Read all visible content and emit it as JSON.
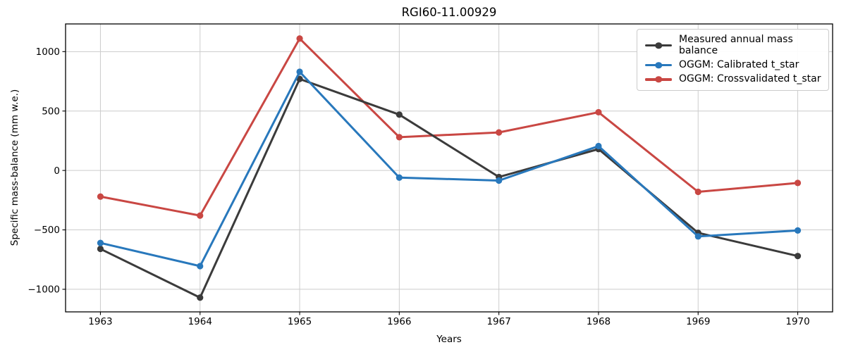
{
  "title": "RGI60-11.00929",
  "colors": {
    "measured": "#3b3b3b",
    "calibrated": "#2878bc",
    "crossvalidated": "#c94743",
    "grid": "#cccccc",
    "spine": "#000000",
    "tick": "#000000",
    "background": "#ffffff",
    "legend_border": "#cbcbcb"
  },
  "chart_data": {
    "type": "line",
    "title": "RGI60-11.00929",
    "xlabel": "Years",
    "ylabel": "Specific mass-balance (mm w.e.)",
    "x": [
      1963,
      1964,
      1965,
      1966,
      1967,
      1968,
      1969,
      1970
    ],
    "xtick_labels": [
      "1963",
      "1964",
      "1965",
      "1966",
      "1967",
      "1968",
      "1969",
      "1970"
    ],
    "yticks": [
      -1000,
      -500,
      0,
      500,
      1000
    ],
    "ytick_labels": [
      "−1000",
      "−500",
      "0",
      "500",
      "1000"
    ],
    "xlim": [
      1962.65,
      1970.35
    ],
    "ylim": [
      -1190,
      1233
    ],
    "grid": true,
    "legend_position": "upper right",
    "marker": "circle",
    "line_width": 3,
    "series": [
      {
        "name": "Measured annual mass balance",
        "color": "#3b3b3b",
        "zorder": 1,
        "values": [
          -660,
          -1070,
          770,
          470,
          -55,
          180,
          -525,
          -720
        ]
      },
      {
        "name": "OGGM: Calibrated t_star",
        "color": "#2878bc",
        "zorder": 2,
        "values": [
          -610,
          -805,
          830,
          -60,
          -85,
          205,
          -555,
          -505
        ]
      },
      {
        "name": "OGGM: Crossvalidated t_star",
        "color": "#c94743",
        "zorder": 0,
        "values": [
          -220,
          -380,
          1110,
          280,
          320,
          490,
          -180,
          -105
        ]
      }
    ]
  }
}
